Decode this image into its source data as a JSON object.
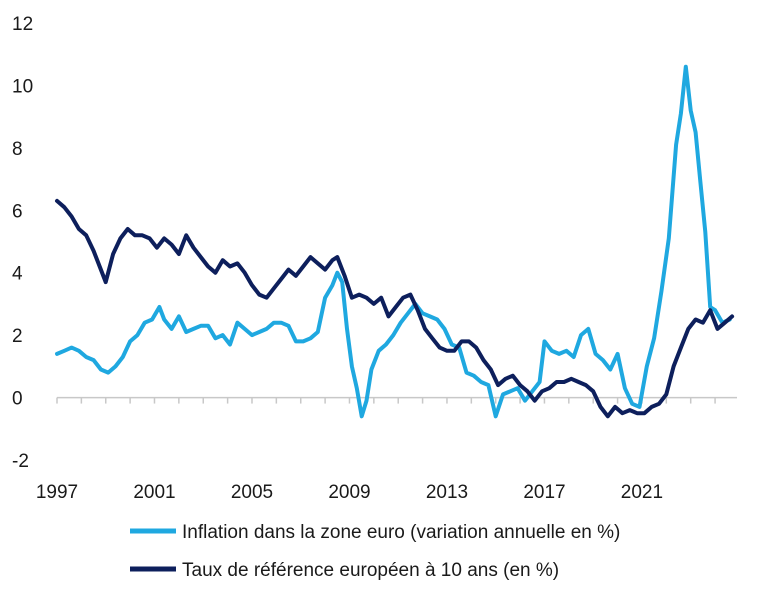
{
  "chart_data": {
    "type": "line",
    "title": "",
    "xlabel": "",
    "ylabel": "",
    "xlim": [
      1997,
      2024.9
    ],
    "ylim": [
      -2,
      12
    ],
    "grid": false,
    "legend_position": "bottom",
    "x_ticks": [
      1997,
      2001,
      2005,
      2009,
      2013,
      2017,
      2021
    ],
    "x_tick_labels": [
      "1997",
      "2001",
      "2005",
      "2009",
      "2013",
      "2017",
      "2021"
    ],
    "y_ticks": [
      -2,
      0,
      2,
      4,
      6,
      8,
      10,
      12
    ],
    "y_tick_labels": [
      "-2",
      "0",
      "2",
      "4",
      "6",
      "8",
      "10",
      "12"
    ],
    "series": [
      {
        "name": "Inflation dans la zone euro (variation annuelle en %)",
        "color": "#1fa8e0",
        "x": [
          1997.0,
          1997.3,
          1997.6,
          1997.9,
          1998.2,
          1998.5,
          1998.8,
          1999.1,
          1999.4,
          1999.7,
          2000.0,
          2000.3,
          2000.6,
          2000.9,
          2001.2,
          2001.4,
          2001.7,
          2002.0,
          2002.3,
          2002.6,
          2002.9,
          2003.2,
          2003.5,
          2003.8,
          2004.1,
          2004.4,
          2004.7,
          2005.0,
          2005.3,
          2005.6,
          2005.9,
          2006.2,
          2006.5,
          2006.8,
          2007.1,
          2007.4,
          2007.7,
          2008.0,
          2008.3,
          2008.5,
          2008.7,
          2008.9,
          2009.1,
          2009.3,
          2009.5,
          2009.7,
          2009.9,
          2010.2,
          2010.5,
          2010.8,
          2011.1,
          2011.4,
          2011.7,
          2012.0,
          2012.3,
          2012.6,
          2012.9,
          2013.2,
          2013.5,
          2013.8,
          2014.1,
          2014.4,
          2014.7,
          2015.0,
          2015.3,
          2015.6,
          2015.9,
          2016.2,
          2016.5,
          2016.8,
          2017.0,
          2017.3,
          2017.6,
          2017.9,
          2018.2,
          2018.5,
          2018.8,
          2019.1,
          2019.4,
          2019.7,
          2020.0,
          2020.3,
          2020.6,
          2020.9,
          2021.2,
          2021.5,
          2021.8,
          2022.1,
          2022.4,
          2022.6,
          2022.8,
          2023.0,
          2023.2,
          2023.4,
          2023.6,
          2023.8,
          2024.0,
          2024.3,
          2024.6
        ],
        "values": [
          1.4,
          1.5,
          1.6,
          1.5,
          1.3,
          1.2,
          0.9,
          0.8,
          1.0,
          1.3,
          1.8,
          2.0,
          2.4,
          2.5,
          2.9,
          2.5,
          2.2,
          2.6,
          2.1,
          2.2,
          2.3,
          2.3,
          1.9,
          2.0,
          1.7,
          2.4,
          2.2,
          2.0,
          2.1,
          2.2,
          2.4,
          2.4,
          2.3,
          1.8,
          1.8,
          1.9,
          2.1,
          3.2,
          3.6,
          4.0,
          3.7,
          2.2,
          1.0,
          0.3,
          -0.6,
          -0.1,
          0.9,
          1.5,
          1.7,
          2.0,
          2.4,
          2.7,
          3.0,
          2.7,
          2.6,
          2.5,
          2.2,
          1.7,
          1.6,
          0.8,
          0.7,
          0.5,
          0.4,
          -0.6,
          0.1,
          0.2,
          0.3,
          -0.1,
          0.2,
          0.5,
          1.8,
          1.5,
          1.4,
          1.5,
          1.3,
          2.0,
          2.2,
          1.4,
          1.2,
          0.9,
          1.4,
          0.3,
          -0.2,
          -0.3,
          1.0,
          1.9,
          3.4,
          5.1,
          8.1,
          9.1,
          10.6,
          9.2,
          8.5,
          6.9,
          5.3,
          2.9,
          2.8,
          2.4,
          2.5
        ]
      },
      {
        "name": "Taux de référence européen à 10 ans (en %)",
        "color": "#0d1f5c",
        "x": [
          1997.0,
          1997.3,
          1997.6,
          1997.9,
          1998.2,
          1998.5,
          1998.8,
          1999.0,
          1999.3,
          1999.6,
          1999.9,
          2000.2,
          2000.5,
          2000.8,
          2001.1,
          2001.4,
          2001.7,
          2002.0,
          2002.3,
          2002.6,
          2002.9,
          2003.2,
          2003.5,
          2003.8,
          2004.1,
          2004.4,
          2004.7,
          2005.0,
          2005.3,
          2005.6,
          2005.9,
          2006.2,
          2006.5,
          2006.8,
          2007.1,
          2007.4,
          2007.7,
          2008.0,
          2008.3,
          2008.5,
          2008.8,
          2009.1,
          2009.4,
          2009.7,
          2010.0,
          2010.3,
          2010.6,
          2010.9,
          2011.2,
          2011.5,
          2011.8,
          2012.1,
          2012.4,
          2012.7,
          2013.0,
          2013.3,
          2013.6,
          2013.9,
          2014.2,
          2014.5,
          2014.8,
          2015.1,
          2015.4,
          2015.7,
          2016.0,
          2016.3,
          2016.6,
          2016.9,
          2017.2,
          2017.5,
          2017.8,
          2018.1,
          2018.4,
          2018.7,
          2019.0,
          2019.3,
          2019.6,
          2019.9,
          2020.2,
          2020.5,
          2020.8,
          2021.1,
          2021.4,
          2021.7,
          2022.0,
          2022.3,
          2022.6,
          2022.9,
          2023.2,
          2023.5,
          2023.8,
          2024.1,
          2024.4,
          2024.7
        ],
        "values": [
          6.3,
          6.1,
          5.8,
          5.4,
          5.2,
          4.7,
          4.1,
          3.7,
          4.6,
          5.1,
          5.4,
          5.2,
          5.2,
          5.1,
          4.8,
          5.1,
          4.9,
          4.6,
          5.2,
          4.8,
          4.5,
          4.2,
          4.0,
          4.4,
          4.2,
          4.3,
          4.0,
          3.6,
          3.3,
          3.2,
          3.5,
          3.8,
          4.1,
          3.9,
          4.2,
          4.5,
          4.3,
          4.1,
          4.4,
          4.5,
          3.9,
          3.2,
          3.3,
          3.2,
          3.0,
          3.2,
          2.6,
          2.9,
          3.2,
          3.3,
          2.8,
          2.2,
          1.9,
          1.6,
          1.5,
          1.5,
          1.8,
          1.8,
          1.6,
          1.2,
          0.9,
          0.4,
          0.6,
          0.7,
          0.4,
          0.2,
          -0.1,
          0.2,
          0.3,
          0.5,
          0.5,
          0.6,
          0.5,
          0.4,
          0.2,
          -0.3,
          -0.6,
          -0.3,
          -0.5,
          -0.4,
          -0.5,
          -0.5,
          -0.3,
          -0.2,
          0.1,
          1.0,
          1.6,
          2.2,
          2.5,
          2.4,
          2.8,
          2.2,
          2.4,
          2.6
        ]
      }
    ]
  }
}
